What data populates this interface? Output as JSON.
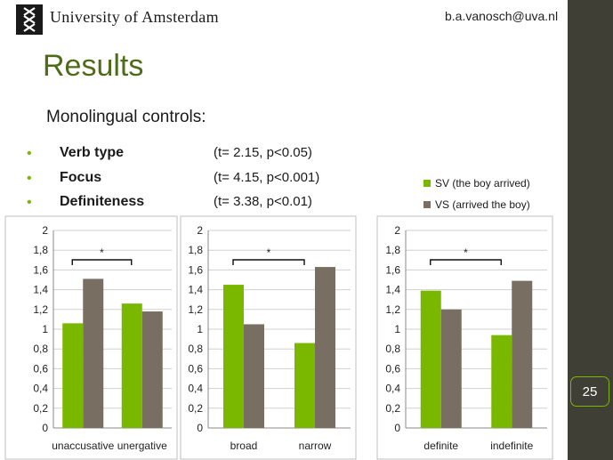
{
  "header": {
    "university": "University of Amsterdam",
    "email": "b.a.vanosch@uva.nl"
  },
  "title": "Results",
  "subtitle": "Monolingual controls:",
  "bullets": [
    {
      "label": "Verb type",
      "stat": "(t= 2.15, p<0.05)"
    },
    {
      "label": "Focus",
      "stat": "(t= 4.15, p<0.001)"
    },
    {
      "label": "Definiteness",
      "stat": "(t= 3.38, p<0.01)"
    }
  ],
  "legend": [
    {
      "label": "SV (the boy arrived)",
      "color": "#7ab800"
    },
    {
      "label": "VS (arrived the boy)",
      "color": "#786f62"
    }
  ],
  "page_number": "25",
  "colors": {
    "accent": "#7ab800",
    "title": "#4f6b1a",
    "sv": "#7ab800",
    "vs": "#786f62",
    "band": "#3f3f35"
  },
  "chart_data": [
    {
      "type": "bar",
      "categories": [
        "unaccusative",
        "unergative"
      ],
      "series": [
        {
          "name": "SV (the boy arrived)",
          "values": [
            1.06,
            1.26
          ]
        },
        {
          "name": "VS (arrived the boy)",
          "values": [
            1.51,
            1.18
          ]
        }
      ],
      "ylim": [
        0,
        2
      ],
      "yticks": [
        "0",
        "0,2",
        "0,4",
        "0,6",
        "0,8",
        "1",
        "1,2",
        "1,4",
        "1,6",
        "1,8",
        "2"
      ],
      "grid": true,
      "annotation": "*"
    },
    {
      "type": "bar",
      "categories": [
        "broad",
        "narrow"
      ],
      "series": [
        {
          "name": "SV (the boy arrived)",
          "values": [
            1.45,
            0.86
          ]
        },
        {
          "name": "VS (arrived the boy)",
          "values": [
            1.05,
            1.63
          ]
        }
      ],
      "ylim": [
        0,
        2
      ],
      "yticks": [
        "0",
        "0,2",
        "0,4",
        "0,6",
        "0,8",
        "1",
        "1,2",
        "1,4",
        "1,6",
        "1,8",
        "2"
      ],
      "grid": true,
      "annotation": "*"
    },
    {
      "type": "bar",
      "categories": [
        "definite",
        "indefinite"
      ],
      "series": [
        {
          "name": "SV (the boy arrived)",
          "values": [
            1.39,
            0.94
          ]
        },
        {
          "name": "VS (arrived the boy)",
          "values": [
            1.2,
            1.49
          ]
        }
      ],
      "ylim": [
        0,
        2
      ],
      "yticks": [
        "0",
        "0,2",
        "0,4",
        "0,6",
        "0,8",
        "1",
        "1,2",
        "1,4",
        "1,6",
        "1,8",
        "2"
      ],
      "grid": true,
      "annotation": "*"
    }
  ]
}
